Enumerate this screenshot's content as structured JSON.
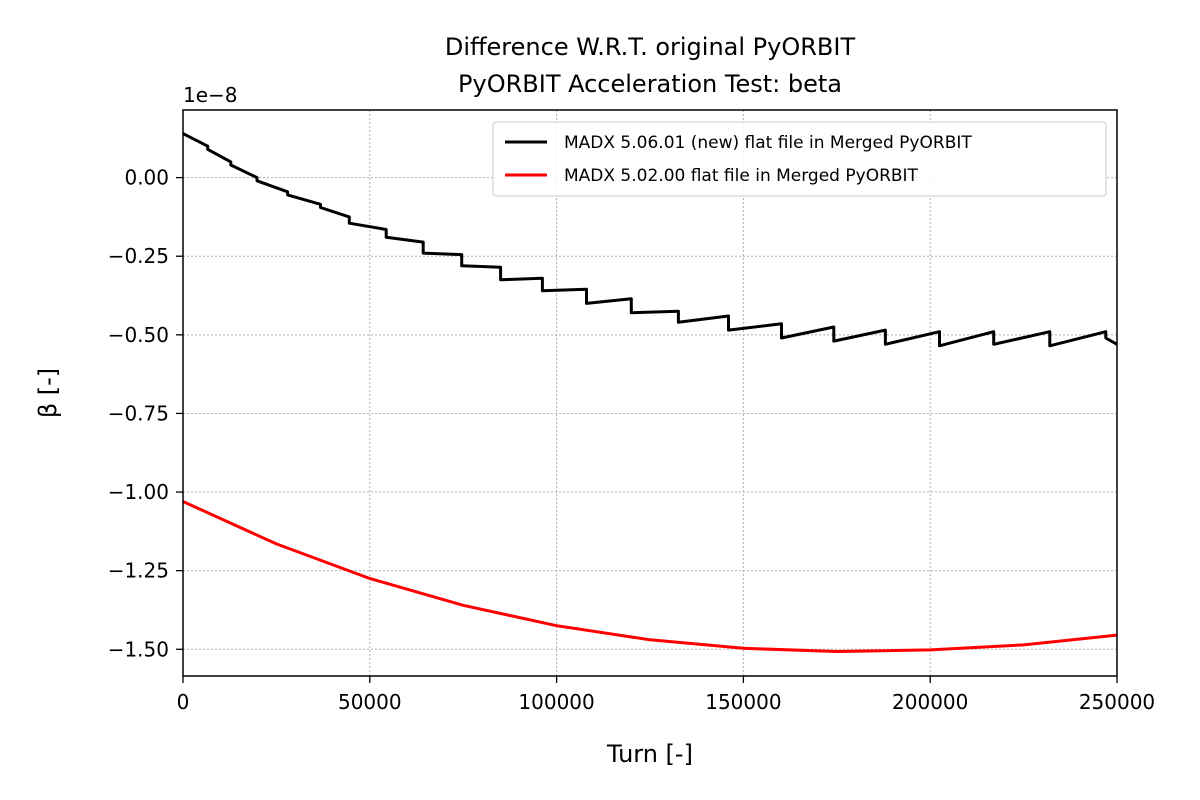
{
  "chart_data": {
    "type": "line",
    "title": "Difference W.R.T. original PyORBIT",
    "subtitle": "PyORBIT Acceleration Test: beta",
    "xlabel": "Turn [-]",
    "ylabel": "β [-]",
    "y_offset_text": "1e−8",
    "xlim": [
      0,
      250000
    ],
    "ylim": [
      -1.585,
      0.215
    ],
    "grid": true,
    "legend_position": "upper right",
    "x_ticks": [
      0,
      50000,
      100000,
      150000,
      200000,
      250000
    ],
    "x_tick_labels": [
      "0",
      "50000",
      "100000",
      "150000",
      "200000",
      "250000"
    ],
    "y_ticks": [
      0.0,
      -0.25,
      -0.5,
      -0.75,
      -1.0,
      -1.25,
      -1.5
    ],
    "y_tick_labels": [
      "0.00",
      "−0.25",
      "−0.50",
      "−0.75",
      "−1.00",
      "−1.25",
      "−1.50"
    ],
    "series": [
      {
        "name": "MADX 5.06.01 (new) flat file in Merged PyORBIT",
        "color": "#000000",
        "x": [
          0,
          6600,
          6600,
          12800,
          12800,
          19800,
          19800,
          28000,
          28000,
          36800,
          36800,
          44500,
          44500,
          54400,
          54400,
          64300,
          64300,
          74600,
          74600,
          85000,
          85000,
          96200,
          96200,
          108000,
          108000,
          120000,
          120000,
          132600,
          132600,
          146000,
          146000,
          160200,
          160200,
          174200,
          174200,
          188000,
          188000,
          202500,
          202500,
          217000,
          217000,
          232000,
          232000,
          247000,
          247000,
          250000
        ],
        "y": [
          0.14,
          0.1,
          0.09,
          0.05,
          0.04,
          0.0,
          -0.01,
          -0.045,
          -0.055,
          -0.085,
          -0.095,
          -0.125,
          -0.145,
          -0.165,
          -0.19,
          -0.205,
          -0.24,
          -0.245,
          -0.28,
          -0.285,
          -0.325,
          -0.32,
          -0.36,
          -0.355,
          -0.4,
          -0.385,
          -0.43,
          -0.425,
          -0.46,
          -0.44,
          -0.485,
          -0.465,
          -0.51,
          -0.475,
          -0.52,
          -0.485,
          -0.53,
          -0.49,
          -0.535,
          -0.49,
          -0.53,
          -0.49,
          -0.535,
          -0.49,
          -0.51,
          -0.53
        ]
      },
      {
        "name": "MADX 5.02.00 flat file in Merged PyORBIT",
        "color": "#ff0000",
        "x": [
          0,
          25000,
          50000,
          75000,
          100000,
          125000,
          150000,
          175000,
          200000,
          225000,
          250000
        ],
        "y": [
          -1.03,
          -1.165,
          -1.275,
          -1.36,
          -1.425,
          -1.47,
          -1.497,
          -1.507,
          -1.502,
          -1.486,
          -1.455
        ]
      }
    ]
  }
}
